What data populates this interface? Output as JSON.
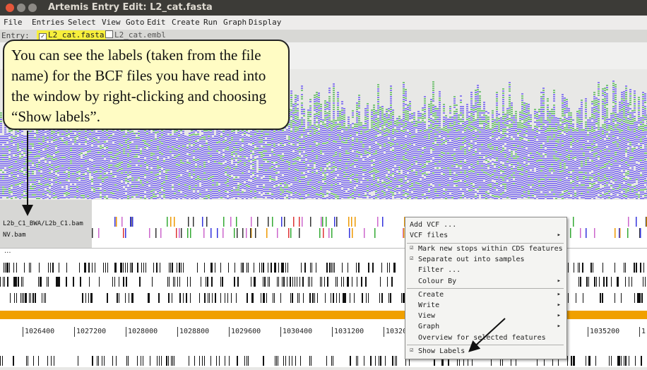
{
  "window": {
    "title": "Artemis Entry Edit: L2_cat.fasta"
  },
  "menu": [
    "File",
    "Entries",
    "Select",
    "View",
    "Goto",
    "Edit",
    "Create",
    "Run",
    "Graph",
    "Display"
  ],
  "entries": {
    "label": "Entry:",
    "items": [
      {
        "name": "L2_cat.fasta",
        "checked": true
      },
      {
        "name": "L2_cat.embl",
        "checked": false
      }
    ]
  },
  "callout": {
    "text": "You can see the labels (taken from the file name) for the BCF files you have read into the window by right-clicking and choosing “Show labels”."
  },
  "vcf_labels": [
    "L2b_C1_BWA/L2b_C1.bam",
    "NV.bam"
  ],
  "feature_dots": "...",
  "ruler": {
    "ticks": [
      "1026400",
      "1027200",
      "1028000",
      "1028800",
      "1029600",
      "1030400",
      "1031200",
      "10320",
      "1035200",
      "1"
    ]
  },
  "context_menu": {
    "items": [
      {
        "label": "Add VCF ...",
        "submenu": false
      },
      {
        "label": "VCF files",
        "submenu": true
      },
      {
        "label": "Mark new stops within CDS features",
        "checked": true
      },
      {
        "label": "Separate out into samples",
        "checked": true
      },
      {
        "label": "Filter ...",
        "submenu": false
      },
      {
        "label": "Colour By",
        "submenu": true
      },
      {
        "label": "Create",
        "submenu": true
      },
      {
        "label": "Write",
        "submenu": true
      },
      {
        "label": "View",
        "submenu": true
      },
      {
        "label": "Graph",
        "submenu": true
      },
      {
        "label": "Overview for selected features",
        "submenu": false
      },
      {
        "label": "Show Labels",
        "checked": true
      }
    ]
  },
  "colors": {
    "read_purple": "#8b7cf0",
    "read_green": "#7ac47a",
    "highlight": "#f7ef3c",
    "orange": "#f0a000"
  }
}
